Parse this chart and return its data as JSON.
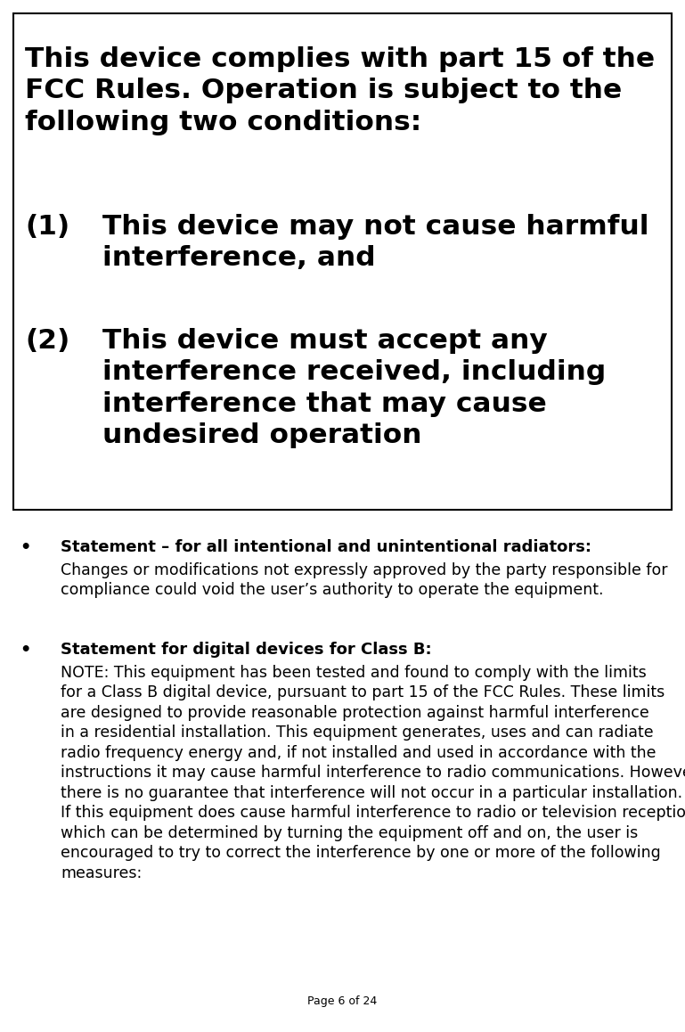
{
  "bg_color": "#ffffff",
  "text_color": "#000000",
  "page_label": "Page 6 of 24",
  "box_border_color": "#000000",
  "header_line1": "This device complies with part 15 of the",
  "header_line2": "FCC Rules. Operation is subject to the",
  "header_line3": "following two conditions:",
  "item1_number": "(1)",
  "item1_line1": "This device may not cause harmful",
  "item1_line2": "interference, and",
  "item2_number": "(2)",
  "item2_line1": "This device must accept any",
  "item2_line2": "interference received, including",
  "item2_line3": "interference that may cause",
  "item2_line4": "undesired operation",
  "bullet1_bold": "Statement – for all intentional and unintentional radiators:",
  "bullet1_body_line1": "Changes or modifications not expressly approved by the party responsible for",
  "bullet1_body_line2": "compliance could void the user’s authority to operate the equipment.",
  "bullet2_bold": "Statement for digital devices for Class B:",
  "bullet2_body_line1": "NOTE: This equipment has been tested and found to comply with the limits",
  "bullet2_body_line2": "for a Class B digital device, pursuant to part 15 of the FCC Rules. These limits",
  "bullet2_body_line3": "are designed to provide reasonable protection against harmful interference",
  "bullet2_body_line4": "in a residential installation. This equipment generates, uses and can radiate",
  "bullet2_body_line5": "radio frequency energy and, if not installed and used in accordance with the",
  "bullet2_body_line6": "instructions it may cause harmful interference to radio communications. However,",
  "bullet2_body_line7": "there is no guarantee that interference will not occur in a particular installation.",
  "bullet2_body_line8": "If this equipment does cause harmful interference to radio or television reception,",
  "bullet2_body_line9": "which can be determined by turning the equipment off and on, the user is",
  "bullet2_body_line10": "encouraged to try to correct the interference by one or more of the following",
  "bullet2_body_line11": "measures:"
}
